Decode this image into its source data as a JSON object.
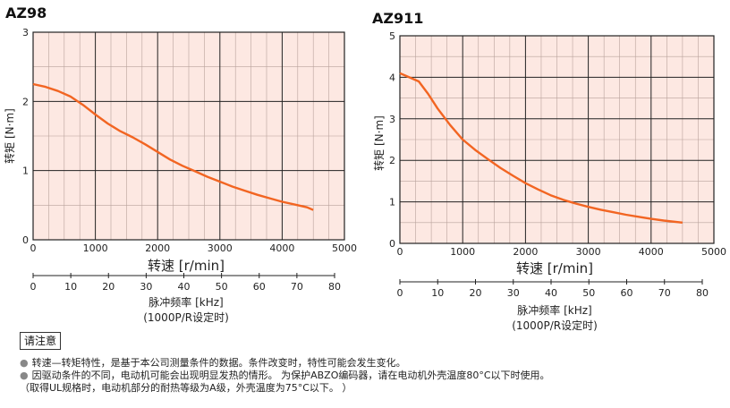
{
  "chart_data": [
    {
      "type": "line",
      "title": "AZ98",
      "ylabel": "转矩 [N·m]",
      "xlabel": "转速 [r/min]",
      "xlim": [
        0,
        5000
      ],
      "ylim": [
        0,
        3
      ],
      "x_ticks": [
        "0",
        "1000",
        "2000",
        "3000",
        "4000",
        "5000"
      ],
      "y_ticks": [
        "0",
        "1",
        "2",
        "3"
      ],
      "series": [
        {
          "x": [
            0,
            200,
            400,
            600,
            800,
            1000,
            1200,
            1400,
            1600,
            1800,
            2000,
            2200,
            2400,
            2600,
            2800,
            3000,
            3200,
            3400,
            3600,
            3800,
            4000,
            4200,
            4400,
            4500
          ],
          "y": [
            2.25,
            2.21,
            2.15,
            2.07,
            1.95,
            1.81,
            1.68,
            1.57,
            1.48,
            1.38,
            1.27,
            1.16,
            1.07,
            0.99,
            0.91,
            0.84,
            0.77,
            0.71,
            0.65,
            0.6,
            0.55,
            0.51,
            0.47,
            0.43
          ]
        }
      ],
      "secondary_axis": {
        "label": "脉冲频率 [kHz]",
        "note": "(1000P/R设定时)",
        "ticks": [
          "0",
          "10",
          "20",
          "30",
          "40",
          "50",
          "60",
          "70",
          "80"
        ],
        "range": [
          0,
          80
        ]
      },
      "grid": true,
      "color": "#f26522",
      "background": "#fde8e2"
    },
    {
      "type": "line",
      "title": "AZ911",
      "ylabel": "转矩 [N·m]",
      "xlabel": "转速 [r/min]",
      "xlim": [
        0,
        5000
      ],
      "ylim": [
        0,
        5
      ],
      "x_ticks": [
        "0",
        "1000",
        "2000",
        "3000",
        "4000",
        "5000"
      ],
      "y_ticks": [
        "0",
        "1",
        "2",
        "3",
        "4",
        "5"
      ],
      "series": [
        {
          "x": [
            0,
            150,
            300,
            450,
            600,
            800,
            1000,
            1200,
            1400,
            1600,
            1800,
            2000,
            2200,
            2400,
            2600,
            2800,
            3000,
            3200,
            3400,
            3600,
            3800,
            4000,
            4200,
            4500
          ],
          "y": [
            4.1,
            4.0,
            3.9,
            3.6,
            3.25,
            2.85,
            2.5,
            2.25,
            2.03,
            1.82,
            1.63,
            1.45,
            1.3,
            1.16,
            1.05,
            0.96,
            0.88,
            0.81,
            0.75,
            0.69,
            0.64,
            0.59,
            0.55,
            0.5
          ]
        }
      ],
      "secondary_axis": {
        "label": "脉冲频率 [kHz]",
        "note": "(1000P/R设定时)",
        "ticks": [
          "0",
          "10",
          "20",
          "30",
          "40",
          "50",
          "60",
          "70",
          "80"
        ],
        "range": [
          0,
          80
        ]
      },
      "grid": true,
      "color": "#f26522",
      "background": "#fde8e2"
    }
  ],
  "notice": {
    "label": "请注意",
    "lines": [
      "转速—转矩特性，是基于本公司测量条件的数据。条件改变时，特性可能会发生变化。",
      "因驱动条件的不同，电动机可能会出现明显发热的情形。 为保护ABZO编码器，请在电动机外壳温度80°C以下时使用。",
      "（取得UL规格时，电动机部分的耐热等级为A级，外壳温度为75°C以下。 ）"
    ]
  }
}
